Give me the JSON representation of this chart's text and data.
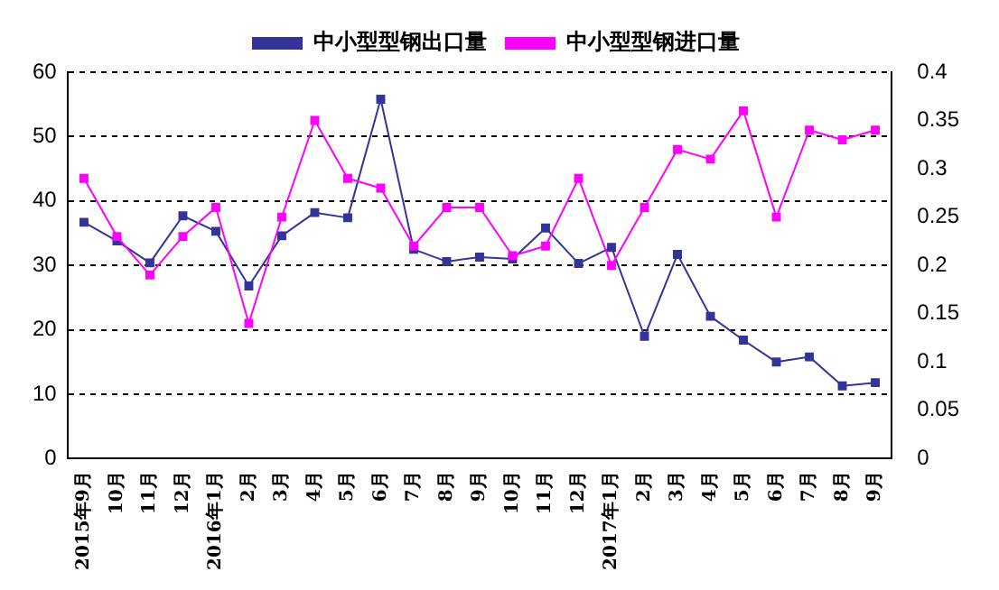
{
  "chart_data": {
    "type": "line",
    "categories": [
      "2015年9月",
      "10月",
      "11月",
      "12月",
      "2016年1月",
      "2月",
      "3月",
      "4月",
      "5月",
      "6月",
      "7月",
      "8月",
      "9月",
      "10月",
      "11月",
      "12月",
      "2017年1月",
      "2月",
      "3月",
      "4月",
      "5月",
      "6月",
      "7月",
      "8月",
      "9月"
    ],
    "series": [
      {
        "name": "中小型型钢出口量",
        "color": "#333399",
        "values": [
          36.7,
          33.8,
          30.4,
          37.7,
          35.3,
          26.8,
          34.6,
          38.2,
          37.4,
          55.8,
          32.5,
          30.6,
          31.3,
          31.0,
          35.8,
          30.3,
          32.8,
          19.0,
          31.7,
          22.1,
          18.4,
          15.0,
          15.8,
          11.3,
          11.8
        ]
      },
      {
        "name": "中小型型钢进口量",
        "color": "#ff00ff",
        "axis": "y2",
        "values": [
          0.29,
          0.23,
          0.19,
          0.23,
          0.26,
          0.14,
          0.25,
          0.35,
          0.29,
          0.28,
          0.22,
          0.26,
          0.26,
          0.21,
          0.22,
          0.29,
          0.2,
          0.26,
          0.32,
          0.31,
          0.36,
          0.25,
          0.34,
          0.33,
          0.34
        ]
      }
    ],
    "ylim": [
      0,
      60
    ],
    "yticks": [
      0,
      10,
      20,
      30,
      40,
      50,
      60
    ],
    "y2lim": [
      0,
      0.4
    ],
    "y2ticks": [
      0,
      0.05,
      0.1,
      0.15,
      0.2,
      0.25,
      0.3,
      0.35,
      0.4
    ],
    "grid": "y",
    "legend": "top",
    "marker": "square",
    "line_style": "solid"
  }
}
